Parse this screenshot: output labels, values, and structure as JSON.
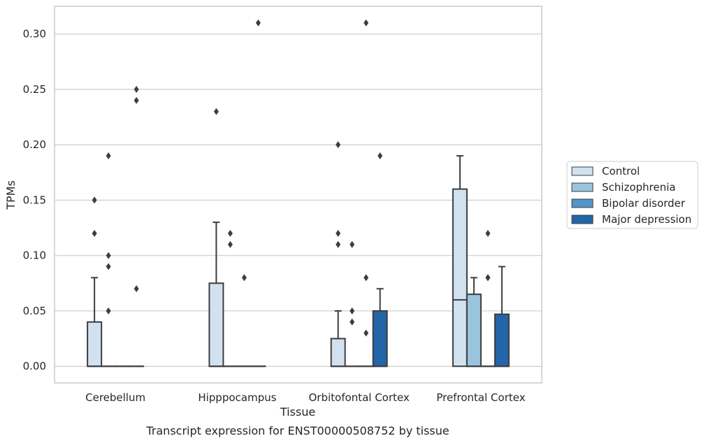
{
  "chart_data": {
    "type": "box",
    "title": "",
    "caption": "Transcript expression for ENST00000508752 by tissue",
    "xlabel": "Tissue",
    "ylabel": "TPMs",
    "ylim": [
      -0.015,
      0.325
    ],
    "yticks": [
      0.0,
      0.05,
      0.1,
      0.15,
      0.2,
      0.25,
      0.3
    ],
    "ytick_labels": [
      "0.00",
      "0.05",
      "0.10",
      "0.15",
      "0.20",
      "0.25",
      "0.30"
    ],
    "grid": "horizontal",
    "legend_position": "right",
    "categories": [
      "Cerebellum",
      "Hipppocampus",
      "Orbitofontal Cortex",
      "Prefrontal Cortex"
    ],
    "series": [
      {
        "name": "Control",
        "color": "#d1e1f0",
        "boxes": [
          {
            "q1": 0.0,
            "median": 0.0,
            "q3": 0.04,
            "whislo": 0.0,
            "whishi": 0.08,
            "fliers": [
              0.12,
              0.15
            ]
          },
          {
            "q1": 0.0,
            "median": 0.0,
            "q3": 0.075,
            "whislo": 0.0,
            "whishi": 0.13,
            "fliers": [
              0.23
            ]
          },
          {
            "q1": 0.0,
            "median": 0.0,
            "q3": 0.025,
            "whislo": 0.0,
            "whishi": 0.05,
            "fliers": [
              0.11,
              0.12,
              0.2
            ]
          },
          {
            "q1": 0.0,
            "median": 0.06,
            "q3": 0.16,
            "whislo": 0.0,
            "whishi": 0.19,
            "fliers": []
          }
        ]
      },
      {
        "name": "Schizophrenia",
        "color": "#9ac4dd",
        "boxes": [
          {
            "q1": 0.0,
            "median": 0.0,
            "q3": 0.0,
            "whislo": 0.0,
            "whishi": 0.0,
            "fliers": [
              0.05,
              0.09,
              0.1,
              0.19
            ]
          },
          {
            "q1": 0.0,
            "median": 0.0,
            "q3": 0.0,
            "whislo": 0.0,
            "whishi": 0.0,
            "fliers": [
              0.11,
              0.12
            ]
          },
          {
            "q1": 0.0,
            "median": 0.0,
            "q3": 0.0,
            "whislo": 0.0,
            "whishi": 0.0,
            "fliers": [
              0.04,
              0.05,
              0.11
            ]
          },
          {
            "q1": 0.0,
            "median": 0.0,
            "q3": 0.065,
            "whislo": 0.0,
            "whishi": 0.08,
            "fliers": []
          }
        ]
      },
      {
        "name": "Bipolar disorder",
        "color": "#5295c6",
        "boxes": [
          {
            "q1": 0.0,
            "median": 0.0,
            "q3": 0.0,
            "whislo": 0.0,
            "whishi": 0.0,
            "fliers": []
          },
          {
            "q1": 0.0,
            "median": 0.0,
            "q3": 0.0,
            "whislo": 0.0,
            "whishi": 0.0,
            "fliers": [
              0.08
            ]
          },
          {
            "q1": 0.0,
            "median": 0.0,
            "q3": 0.0,
            "whislo": 0.0,
            "whishi": 0.0,
            "fliers": [
              0.03,
              0.08,
              0.31
            ]
          },
          {
            "q1": 0.0,
            "median": 0.0,
            "q3": 0.0,
            "whislo": 0.0,
            "whishi": 0.0,
            "fliers": [
              0.08,
              0.08,
              0.12
            ]
          }
        ]
      },
      {
        "name": "Major depression",
        "color": "#2265a8",
        "boxes": [
          {
            "q1": 0.0,
            "median": 0.0,
            "q3": 0.0,
            "whislo": 0.0,
            "whishi": 0.0,
            "fliers": [
              0.07,
              0.24,
              0.25
            ]
          },
          {
            "q1": 0.0,
            "median": 0.0,
            "q3": 0.0,
            "whislo": 0.0,
            "whishi": 0.0,
            "fliers": [
              0.31
            ]
          },
          {
            "q1": 0.0,
            "median": 0.0,
            "q3": 0.05,
            "whislo": 0.0,
            "whishi": 0.07,
            "fliers": [
              0.19
            ]
          },
          {
            "q1": 0.0,
            "median": 0.0,
            "q3": 0.047,
            "whislo": 0.0,
            "whishi": 0.09,
            "fliers": []
          }
        ]
      }
    ]
  }
}
